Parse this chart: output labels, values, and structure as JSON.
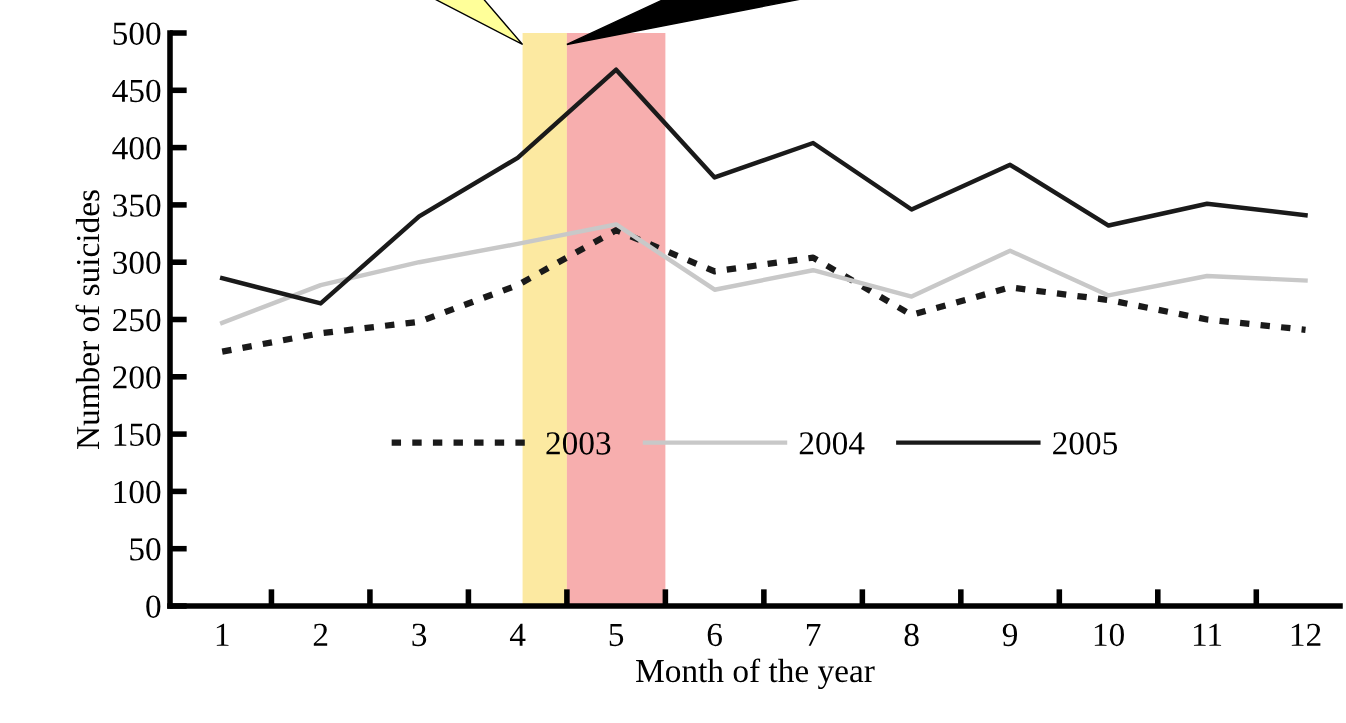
{
  "chart_data": {
    "type": "line",
    "xlabel": "Month of the year",
    "ylabel": "Number of suicides",
    "x": [
      1,
      2,
      3,
      4,
      5,
      6,
      7,
      8,
      9,
      10,
      11,
      12
    ],
    "series": [
      {
        "name": "2003",
        "color": "#1a1a1a",
        "line_style": "dashed",
        "values": [
          222,
          238,
          248,
          280,
          328,
          292,
          304,
          254,
          278,
          267,
          250,
          241
        ]
      },
      {
        "name": "2004",
        "color": "#c8c8c8",
        "line_style": "solid",
        "values": [
          247,
          280,
          300,
          316,
          333,
          276,
          293,
          270,
          310,
          271,
          288,
          284
        ]
      },
      {
        "name": "2005",
        "color": "#1a1a1a",
        "line_style": "solid",
        "values": [
          286,
          264,
          340,
          391,
          468,
          374,
          404,
          346,
          385,
          332,
          351,
          341
        ]
      }
    ],
    "xlim": [
      0.47,
      12.35
    ],
    "xticks": [
      1,
      2,
      3,
      4,
      5,
      6,
      7,
      8,
      9,
      10,
      11,
      12
    ],
    "ylim": [
      0,
      500
    ],
    "yticks": [
      0,
      50,
      100,
      150,
      200,
      250,
      300,
      350,
      400,
      450,
      500
    ],
    "bands": [
      {
        "axis": "x",
        "from": 4.05,
        "to": 4.5,
        "color": "#fbe38a"
      },
      {
        "axis": "x",
        "from": 4.5,
        "to": 5.5,
        "color": "#f59a9a"
      }
    ],
    "legend": "bottom",
    "grid": false,
    "marker": "none"
  }
}
